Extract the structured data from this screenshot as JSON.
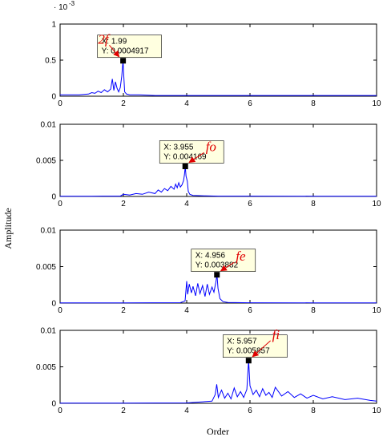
{
  "figure": {
    "ylabel": "Amplitude",
    "xlabel": "Order"
  },
  "chart_data": [
    {
      "type": "line",
      "xlim": [
        0,
        10
      ],
      "ylim": [
        0,
        0.001
      ],
      "x_ticks": [
        0,
        2,
        4,
        6,
        8,
        10
      ],
      "y_ticks": [
        0,
        0.0005,
        0.001
      ],
      "y_tick_labels": [
        "0",
        "0.5",
        "1"
      ],
      "y_exponent_label": "· 10",
      "y_exponent_power": "-3",
      "series": [
        {
          "color": "#0000ff",
          "x": [
            0.0,
            0.3,
            0.6,
            0.9,
            1.0,
            1.1,
            1.2,
            1.3,
            1.4,
            1.5,
            1.6,
            1.65,
            1.7,
            1.75,
            1.8,
            1.85,
            1.9,
            1.95,
            1.97,
            1.99,
            2.01,
            2.04,
            2.1,
            2.2,
            2.5,
            3.0,
            3.5,
            4.0,
            5.0,
            6.0,
            7.0,
            8.0,
            9.0,
            10.0
          ],
          "y": [
            2e-05,
            2e-05,
            2e-05,
            3e-05,
            5e-05,
            4e-05,
            7e-05,
            5e-05,
            9e-05,
            6e-05,
            0.0001,
            0.00024,
            8e-05,
            0.0002,
            0.00011,
            6e-05,
            0.00012,
            0.00028,
            0.0004,
            0.0004917,
            0.0003,
            6e-05,
            3e-05,
            2e-05,
            2e-05,
            1e-05,
            1e-05,
            1e-05,
            1e-05,
            1e-05,
            1e-05,
            1e-05,
            1e-05,
            1e-05
          ]
        }
      ],
      "datatip": {
        "x_label": "X: 1.99",
        "y_label": "Y: 0.0004917",
        "x": 1.99,
        "y": 0.0004917
      },
      "annotation": {
        "text": "2f",
        "x": 1.2,
        "y": 0.00073
      }
    },
    {
      "type": "line",
      "xlim": [
        0,
        10
      ],
      "ylim": [
        0,
        0.01
      ],
      "x_ticks": [
        0,
        2,
        4,
        6,
        8,
        10
      ],
      "y_ticks": [
        0,
        0.005,
        0.01
      ],
      "y_tick_labels": [
        "0",
        "0.005",
        "0.01"
      ],
      "series": [
        {
          "color": "#0000ff",
          "x": [
            0.0,
            1.0,
            1.9,
            2.0,
            2.2,
            2.4,
            2.6,
            2.8,
            3.0,
            3.1,
            3.2,
            3.3,
            3.4,
            3.5,
            3.6,
            3.65,
            3.7,
            3.75,
            3.8,
            3.85,
            3.9,
            3.93,
            3.955,
            3.98,
            4.02,
            4.05,
            4.1,
            4.2,
            4.6,
            5.0,
            6.0,
            8.0,
            10.0
          ],
          "y": [
            3e-05,
            3e-05,
            4e-05,
            0.0003,
            0.0002,
            0.0004,
            0.0003,
            0.0006,
            0.0004,
            0.0009,
            0.0006,
            0.0011,
            0.0008,
            0.0014,
            0.001,
            0.0017,
            0.0012,
            0.0019,
            0.0013,
            0.0016,
            0.0022,
            0.003,
            0.004169,
            0.0028,
            0.0021,
            0.0007,
            0.0003,
            0.00015,
            8e-05,
            5e-05,
            4e-05,
            3e-05,
            3e-05
          ]
        }
      ],
      "datatip": {
        "x_label": "X: 3.955",
        "y_label": "Y: 0.004169",
        "x": 3.955,
        "y": 0.004169
      },
      "annotation": {
        "text": "fo",
        "x": 4.6,
        "y": 0.0063
      }
    },
    {
      "type": "line",
      "xlim": [
        0,
        10
      ],
      "ylim": [
        0,
        0.01
      ],
      "x_ticks": [
        0,
        2,
        4,
        6,
        8,
        10
      ],
      "y_ticks": [
        0,
        0.005,
        0.01
      ],
      "y_tick_labels": [
        "0",
        "0.005",
        "0.01"
      ],
      "series": [
        {
          "color": "#0000ff",
          "x": [
            0.0,
            2.0,
            3.8,
            3.95,
            4.0,
            4.03,
            4.08,
            4.15,
            4.2,
            4.28,
            4.35,
            4.42,
            4.5,
            4.58,
            4.65,
            4.72,
            4.8,
            4.86,
            4.92,
            4.956,
            4.99,
            5.05,
            5.15,
            5.3,
            6.0,
            8.0,
            10.0
          ],
          "y": [
            3e-05,
            3e-05,
            5e-05,
            0.0003,
            0.003,
            0.0012,
            0.0026,
            0.0014,
            0.0023,
            0.001,
            0.0027,
            0.0013,
            0.0024,
            0.0009,
            0.0026,
            0.0012,
            0.0022,
            0.0015,
            0.0028,
            0.003882,
            0.002,
            0.0006,
            0.0002,
            8e-05,
            4e-05,
            3e-05,
            3e-05
          ]
        }
      ],
      "datatip": {
        "x_label": "X: 4.956",
        "y_label": "Y: 0.003882",
        "x": 4.956,
        "y": 0.003882
      },
      "annotation": {
        "text": "fe",
        "x": 5.55,
        "y": 0.0058
      }
    },
    {
      "type": "line",
      "xlim": [
        0,
        10
      ],
      "ylim": [
        0,
        0.01
      ],
      "x_ticks": [
        0,
        2,
        4,
        6,
        8,
        10
      ],
      "y_ticks": [
        0,
        0.005,
        0.01
      ],
      "y_tick_labels": [
        "0",
        "0.005",
        "0.01"
      ],
      "series": [
        {
          "color": "#0000ff",
          "x": [
            0.0,
            2.0,
            4.0,
            4.8,
            4.9,
            4.95,
            5.0,
            5.1,
            5.2,
            5.3,
            5.4,
            5.5,
            5.6,
            5.7,
            5.8,
            5.9,
            5.957,
            6.0,
            6.1,
            6.2,
            6.3,
            6.4,
            6.5,
            6.6,
            6.7,
            6.8,
            7.0,
            7.2,
            7.4,
            7.6,
            7.8,
            8.0,
            8.3,
            8.6,
            9.0,
            9.4,
            9.8,
            10.0
          ],
          "y": [
            2e-05,
            2e-05,
            5e-05,
            0.0003,
            0.0012,
            0.0026,
            0.0008,
            0.0018,
            0.0007,
            0.0014,
            0.0006,
            0.0021,
            0.0009,
            0.0016,
            0.0008,
            0.0019,
            0.005857,
            0.0024,
            0.0012,
            0.0018,
            0.0009,
            0.002,
            0.0011,
            0.0015,
            0.0008,
            0.0022,
            0.001,
            0.0016,
            0.0008,
            0.0013,
            0.0007,
            0.0011,
            0.0006,
            0.0009,
            0.0005,
            0.0007,
            0.0004,
            0.0003
          ]
        }
      ],
      "datatip": {
        "x_label": "X: 5.957",
        "y_label": "Y: 0.005857",
        "x": 5.957,
        "y": 0.005857
      },
      "annotation": {
        "text": "fi",
        "x": 6.7,
        "y": 0.0088
      }
    }
  ]
}
